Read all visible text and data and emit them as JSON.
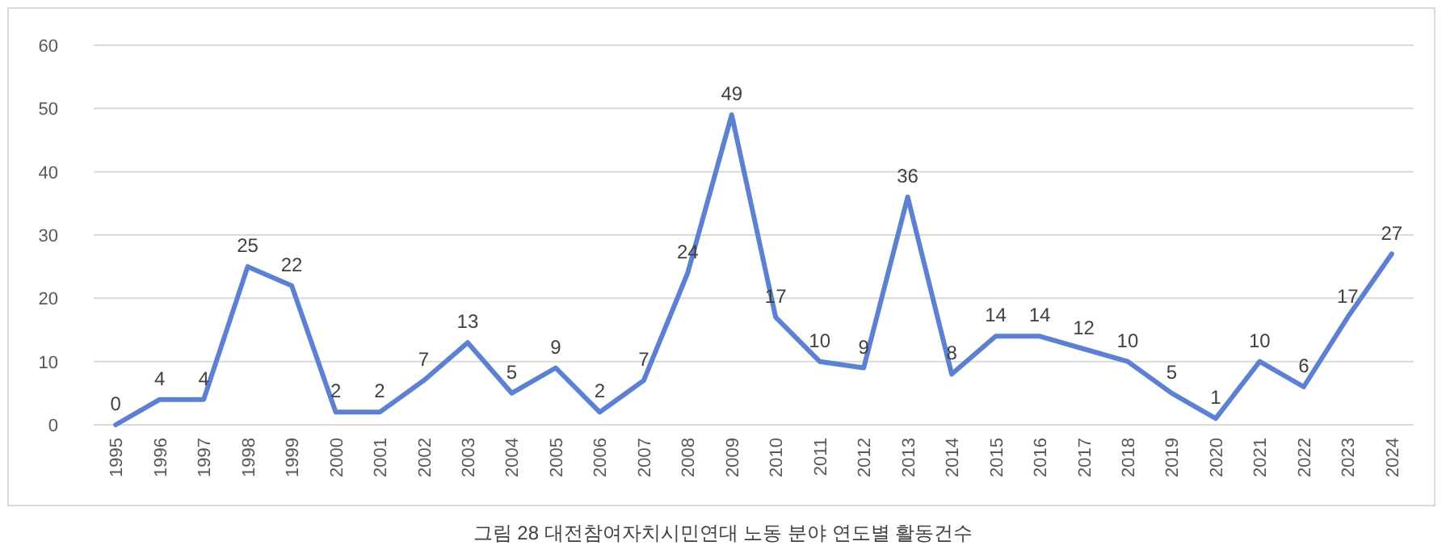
{
  "chart_data": {
    "type": "line",
    "title": "그림 28 대전참여자치시민연대 노동 분야 연도별 활동건수",
    "categories": [
      "1995",
      "1996",
      "1997",
      "1998",
      "1999",
      "2000",
      "2001",
      "2002",
      "2003",
      "2004",
      "2005",
      "2006",
      "2007",
      "2008",
      "2009",
      "2010",
      "2011",
      "2012",
      "2013",
      "2014",
      "2015",
      "2016",
      "2017",
      "2018",
      "2019",
      "2020",
      "2021",
      "2022",
      "2023",
      "2024"
    ],
    "values": [
      0,
      4,
      4,
      25,
      22,
      2,
      2,
      7,
      13,
      5,
      9,
      2,
      7,
      24,
      49,
      17,
      10,
      9,
      36,
      8,
      14,
      14,
      12,
      10,
      5,
      1,
      10,
      6,
      17,
      27
    ],
    "color": "#5b80d8",
    "ylim": [
      0,
      60
    ],
    "yticks": [
      0,
      10,
      20,
      30,
      40,
      50,
      60
    ],
    "grid": "y",
    "data_labels": true
  }
}
